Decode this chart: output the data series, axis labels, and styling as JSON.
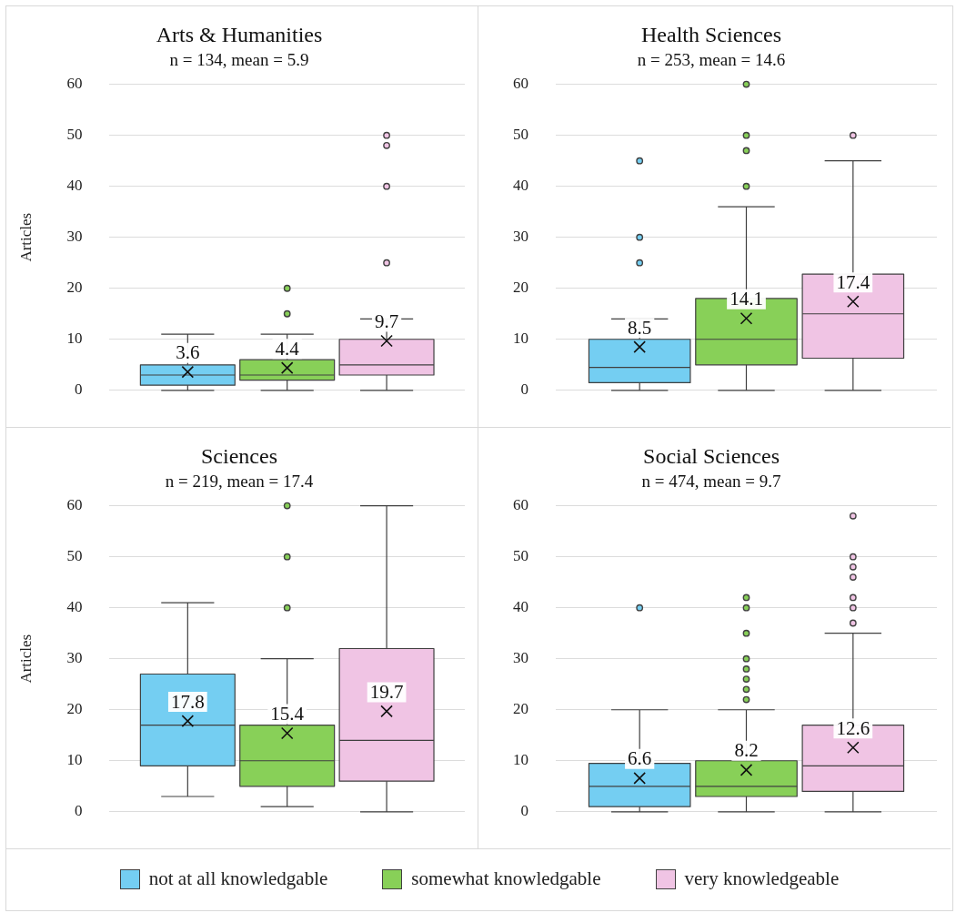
{
  "chart_data": [
    {
      "type": "box",
      "title": "Arts & Humanities",
      "subtitle": "n = 134, mean = 5.9",
      "ylabel": "Articles",
      "categories": [
        null
      ],
      "ylim": [
        0,
        60
      ],
      "yticks": [
        0,
        10,
        20,
        30,
        40,
        50,
        60
      ],
      "grid": "y",
      "tick_labels": "y",
      "series": [
        {
          "color": "#74cef2",
          "value_labels": [
            "3.6"
          ],
          "boxes": [
            {
              "low": 0,
              "q1": 1,
              "median": 3,
              "q3": 5,
              "high": 11,
              "mean": 3.6
            }
          ]
        },
        {
          "color": "#88d058",
          "value_labels": [
            "4.4"
          ],
          "boxes": [
            {
              "low": 0,
              "q1": 2,
              "median": 3,
              "q3": 6,
              "high": 11,
              "mean": 4.4,
              "outliers": [
                15,
                20
              ]
            }
          ]
        },
        {
          "color": "#f0c4e4",
          "value_labels": [
            "9.7"
          ],
          "boxes": [
            {
              "low": 0,
              "q1": 3,
              "median": 5,
              "q3": 10,
              "high": 14,
              "mean": 9.7,
              "outliers": [
                25,
                40,
                48,
                50
              ]
            }
          ]
        }
      ]
    },
    {
      "type": "box",
      "title": "Health Sciences",
      "subtitle": "n = 253, mean = 14.6",
      "categories": [
        null
      ],
      "ylim": [
        0,
        60
      ],
      "yticks": [
        0,
        10,
        20,
        30,
        40,
        50,
        60
      ],
      "grid": "y",
      "tick_labels": "y",
      "series": [
        {
          "color": "#74cef2",
          "value_labels": [
            "8.5"
          ],
          "boxes": [
            {
              "low": 0,
              "q1": 1.5,
              "median": 4.5,
              "q3": 10,
              "high": 14,
              "mean": 8.5,
              "outliers": [
                25,
                30,
                45
              ]
            }
          ]
        },
        {
          "color": "#88d058",
          "value_labels": [
            "14.1"
          ],
          "boxes": [
            {
              "low": 0,
              "q1": 5,
              "median": 10,
              "q3": 18,
              "high": 36,
              "mean": 14.1,
              "outliers": [
                40,
                47,
                50,
                60
              ]
            }
          ]
        },
        {
          "color": "#f0c4e4",
          "value_labels": [
            "17.4"
          ],
          "boxes": [
            {
              "low": 0,
              "q1": 6.3,
              "median": 15,
              "q3": 22.8,
              "high": 45,
              "mean": 17.4,
              "outliers": [
                50
              ]
            }
          ]
        }
      ]
    },
    {
      "type": "box",
      "title": "Sciences",
      "subtitle": "n = 219, mean = 17.4",
      "ylabel": "Articles",
      "categories": [
        null
      ],
      "ylim": [
        0,
        60
      ],
      "yticks": [
        0,
        10,
        20,
        30,
        40,
        50,
        60
      ],
      "grid": "y",
      "tick_labels": "y",
      "series": [
        {
          "color": "#74cef2",
          "value_labels": [
            "17.8"
          ],
          "boxes": [
            {
              "low": 3,
              "q1": 9,
              "median": 17,
              "q3": 27,
              "high": 41,
              "mean": 17.8
            }
          ]
        },
        {
          "color": "#88d058",
          "value_labels": [
            "15.4"
          ],
          "boxes": [
            {
              "low": 1,
              "q1": 5,
              "median": 10,
              "q3": 17,
              "high": 30,
              "mean": 15.4,
              "outliers": [
                40,
                50,
                60
              ]
            }
          ]
        },
        {
          "color": "#f0c4e4",
          "value_labels": [
            "19.7"
          ],
          "boxes": [
            {
              "low": 0,
              "q1": 6,
              "median": 14,
              "q3": 32,
              "high": 60,
              "mean": 19.7
            }
          ]
        }
      ]
    },
    {
      "type": "box",
      "title": "Social Sciences",
      "subtitle": "n = 474, mean = 9.7",
      "categories": [
        null
      ],
      "ylim": [
        0,
        60
      ],
      "yticks": [
        0,
        10,
        20,
        30,
        40,
        50,
        60
      ],
      "grid": "y",
      "tick_labels": "y",
      "legend": "bottom",
      "series": [
        {
          "name": "not at all knowledgable",
          "color": "#74cef2",
          "value_labels": [
            "6.6"
          ],
          "boxes": [
            {
              "low": 0,
              "q1": 1,
              "median": 5,
              "q3": 9.5,
              "high": 20,
              "mean": 6.6,
              "outliers": [
                40
              ]
            }
          ]
        },
        {
          "name": "somewhat knowledgable",
          "color": "#88d058",
          "value_labels": [
            "8.2"
          ],
          "boxes": [
            {
              "low": 0,
              "q1": 3,
              "median": 5,
              "q3": 10,
              "high": 20,
              "mean": 8.2,
              "outliers": [
                22,
                24,
                26,
                28,
                30,
                35,
                40,
                42
              ]
            }
          ]
        },
        {
          "name": "very knowledgeable",
          "color": "#f0c4e4",
          "value_labels": [
            "12.6"
          ],
          "boxes": [
            {
              "low": 0,
              "q1": 4,
              "median": 9,
              "q3": 17,
              "high": 35,
              "mean": 12.6,
              "outliers": [
                37,
                40,
                42,
                46,
                48,
                50,
                58
              ]
            }
          ]
        }
      ]
    }
  ]
}
